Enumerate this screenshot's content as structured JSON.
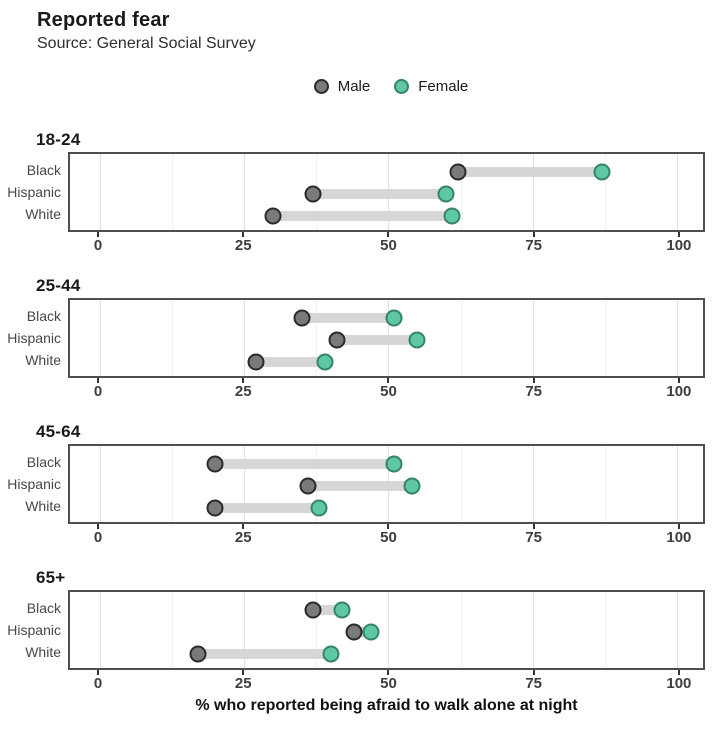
{
  "header": {
    "title": "Reported fear",
    "subtitle": "Source: General Social Survey"
  },
  "legend": {
    "items": [
      {
        "label": "Male",
        "fill": "#7a7a7a",
        "stroke": "#2b2b2b"
      },
      {
        "label": "Female",
        "fill": "#5fc8a2",
        "stroke": "#35836a"
      }
    ]
  },
  "chart_data": {
    "type": "dumbbell",
    "title": "Reported fear",
    "subtitle": "Source: General Social Survey",
    "series_names": [
      "Male",
      "Female"
    ],
    "x_axis": {
      "label": "% who reported being afraid to walk alone at night",
      "ticks": [
        0,
        25,
        50,
        75,
        100
      ],
      "minor_gridlines": [
        12.5,
        37.5,
        62.5,
        87.5
      ],
      "range": [
        -5.2,
        104.5
      ],
      "grid": true
    },
    "facets": [
      {
        "title": "18-24",
        "rows": [
          {
            "label": "Black",
            "male": 62,
            "female": 87
          },
          {
            "label": "Hispanic",
            "male": 37,
            "female": 60
          },
          {
            "label": "White",
            "male": 30,
            "female": 61
          }
        ]
      },
      {
        "title": "25-44",
        "rows": [
          {
            "label": "Black",
            "male": 35,
            "female": 51
          },
          {
            "label": "Hispanic",
            "male": 41,
            "female": 55
          },
          {
            "label": "White",
            "male": 27,
            "female": 39
          }
        ]
      },
      {
        "title": "45-64",
        "rows": [
          {
            "label": "Black",
            "male": 20,
            "female": 51
          },
          {
            "label": "Hispanic",
            "male": 36,
            "female": 54
          },
          {
            "label": "White",
            "male": 20,
            "female": 38
          }
        ]
      },
      {
        "title": "65+",
        "rows": [
          {
            "label": "Black",
            "male": 37,
            "female": 42
          },
          {
            "label": "Hispanic",
            "male": 44,
            "female": 47
          },
          {
            "label": "White",
            "male": 17,
            "female": 40
          }
        ]
      }
    ],
    "colors": {
      "male_fill": "#7a7a7a",
      "male_stroke": "#2b2b2b",
      "female_fill": "#5fc8a2",
      "female_stroke": "#35836a",
      "connector": "#d6d6d6",
      "grid_major": "#e2e2e2",
      "grid_minor": "#f0f0f0",
      "panel_border": "#4f4f4f"
    }
  }
}
